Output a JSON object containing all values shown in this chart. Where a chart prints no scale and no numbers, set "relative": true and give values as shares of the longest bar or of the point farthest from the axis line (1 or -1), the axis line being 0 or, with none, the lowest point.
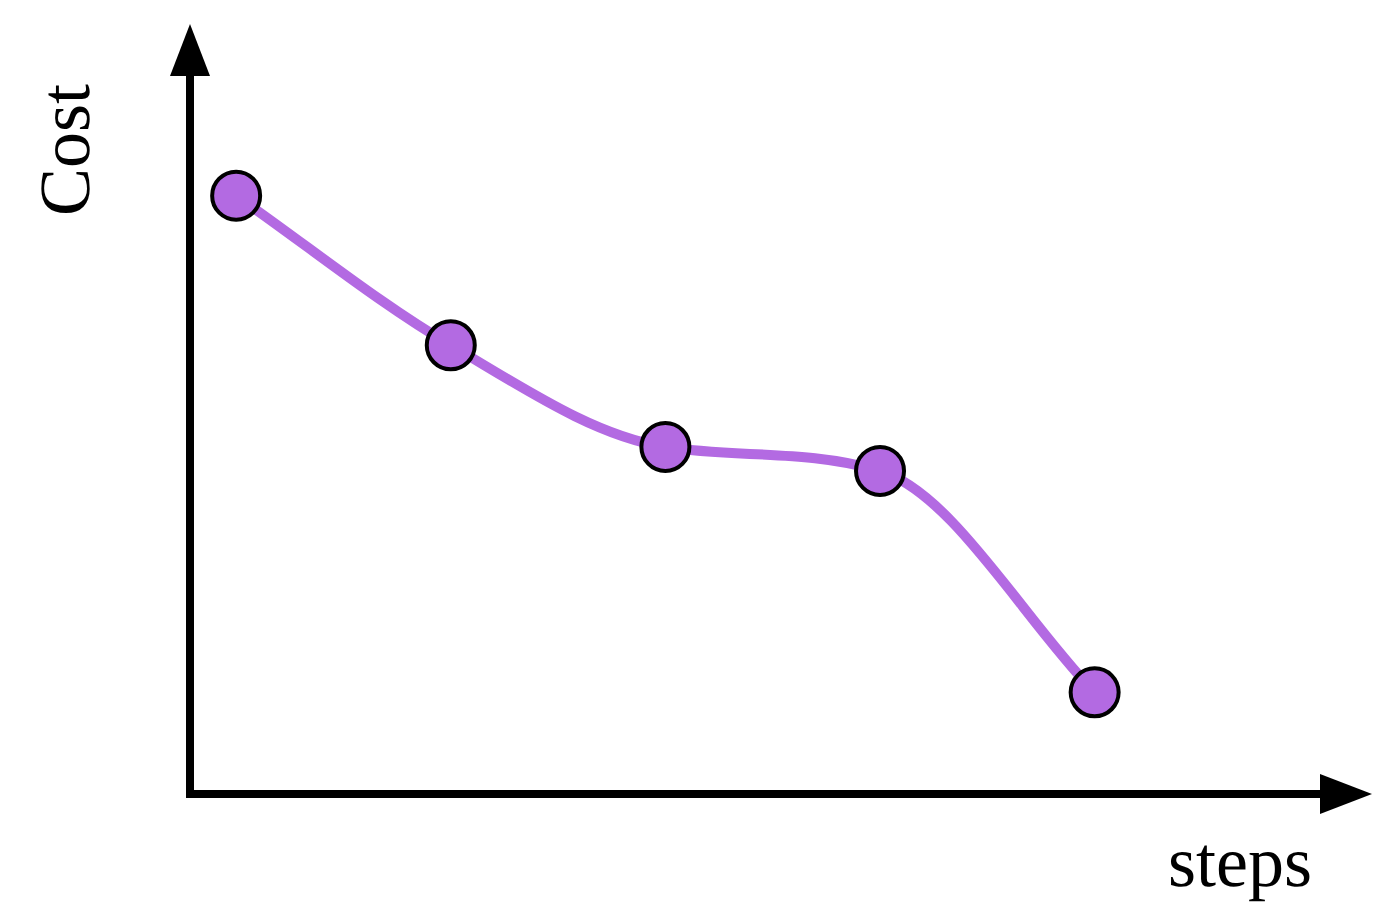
{
  "chart_data": {
    "type": "line",
    "xlabel": "steps",
    "ylabel": "Cost",
    "relative": true,
    "categories": [
      null,
      null,
      null,
      null,
      null
    ],
    "series": [
      {
        "color": "#b36ae2",
        "values": [
          1,
          0.75,
          0.58,
          0.54,
          0.17
        ]
      }
    ],
    "marker": "circle",
    "line_style": "solid"
  }
}
